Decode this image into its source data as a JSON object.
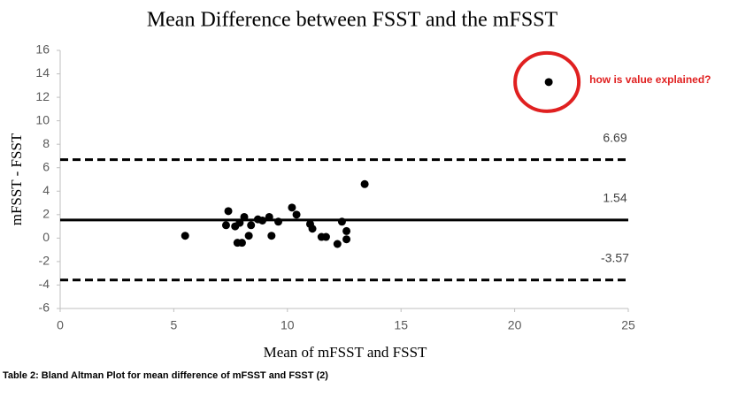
{
  "chart_data": {
    "type": "scatter",
    "title": "Mean Difference between FSST and the mFSST",
    "x_label": "Mean of mFSST and FSST",
    "y_label": "mFSST - FSST",
    "x": [
      5.5,
      7.4,
      7.3,
      7.7,
      7.9,
      8.1,
      7.8,
      8.0,
      8.3,
      8.4,
      8.7,
      8.9,
      9.2,
      9.3,
      9.6,
      10.2,
      10.4,
      11.0,
      11.1,
      11.5,
      11.7,
      12.2,
      12.4,
      12.6,
      12.6,
      13.4,
      21.5
    ],
    "y": [
      0.2,
      2.3,
      1.1,
      1.0,
      1.3,
      1.8,
      -0.4,
      -0.4,
      0.2,
      1.1,
      1.6,
      1.5,
      1.8,
      0.2,
      1.4,
      2.6,
      2.0,
      1.2,
      0.8,
      0.1,
      0.1,
      -0.5,
      1.4,
      0.6,
      -0.1,
      4.6,
      13.3
    ],
    "color": "#000000",
    "lines": [
      {
        "value": 6.69,
        "dashed": true
      },
      {
        "value": 1.54,
        "dashed": false
      },
      {
        "value": -3.57,
        "dashed": true
      }
    ],
    "annotation": "how is value explained?",
    "annotation_color": "#e02020",
    "xlim": [
      0,
      25
    ],
    "xticks": [
      0,
      5,
      10,
      15,
      20,
      25
    ],
    "ylim": [
      -6,
      16
    ],
    "yticks": [
      -6,
      -4,
      -2,
      0,
      2,
      4,
      6,
      8,
      10,
      12,
      14,
      16
    ],
    "grid": false
  },
  "caption": "Table 2: Bland Altman Plot for mean difference of mFSST and FSST (2)"
}
